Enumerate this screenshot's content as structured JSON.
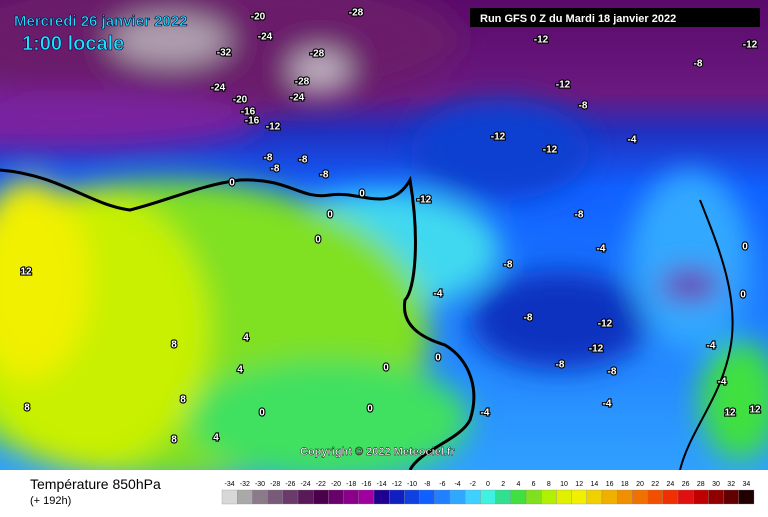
{
  "header": {
    "date": "Mercredi 26 janvier 2022",
    "time": "1:00 locale",
    "run": "Run GFS 0 Z du Mardi 18 janvier 2022"
  },
  "copyright": "Copyright © 2022 Meteociel.fr",
  "footer": {
    "title": "Température 850hPa",
    "lead": "(+ 192h)"
  },
  "color_scale": {
    "values": [
      -34,
      -32,
      -30,
      -28,
      -26,
      -24,
      -22,
      -20,
      -18,
      -16,
      -14,
      -12,
      -10,
      -8,
      -6,
      -4,
      -2,
      0,
      2,
      4,
      6,
      8,
      10,
      12,
      14,
      16,
      18,
      20,
      22,
      24,
      26,
      28,
      30,
      32,
      34
    ],
    "colors": [
      "#d8d8d8",
      "#a9a9a9",
      "#8a7a8a",
      "#7a5a7a",
      "#6a3a6a",
      "#5a1a5a",
      "#4a004a",
      "#6a006a",
      "#8a008a",
      "#a000a0",
      "#200090",
      "#1020c0",
      "#1040e0",
      "#1060ff",
      "#2080ff",
      "#30a8ff",
      "#40d0ff",
      "#40f0e0",
      "#30e090",
      "#40e040",
      "#80e020",
      "#b0f000",
      "#e0f000",
      "#f0f000",
      "#f0d000",
      "#f0b000",
      "#f09000",
      "#f07000",
      "#f05000",
      "#f03000",
      "#e01010",
      "#c00000",
      "#900000",
      "#600000",
      "#200000"
    ]
  },
  "map_labels": [
    -20,
    -28,
    -24,
    -32,
    -24,
    -20,
    -16,
    -16,
    -12,
    -28,
    -28,
    -24,
    -12,
    -12,
    -8,
    -12,
    -12,
    -8,
    -8,
    -8,
    -8,
    -4,
    0,
    0,
    -12,
    -8,
    0,
    0,
    12,
    -4,
    -8,
    -4,
    -8,
    -12,
    -12,
    -8,
    -4,
    -4,
    0,
    0,
    4,
    4,
    8,
    8,
    0,
    4,
    8,
    8,
    12,
    12,
    -8,
    -12,
    0,
    0,
    -4,
    -4,
    0,
    -8
  ]
}
